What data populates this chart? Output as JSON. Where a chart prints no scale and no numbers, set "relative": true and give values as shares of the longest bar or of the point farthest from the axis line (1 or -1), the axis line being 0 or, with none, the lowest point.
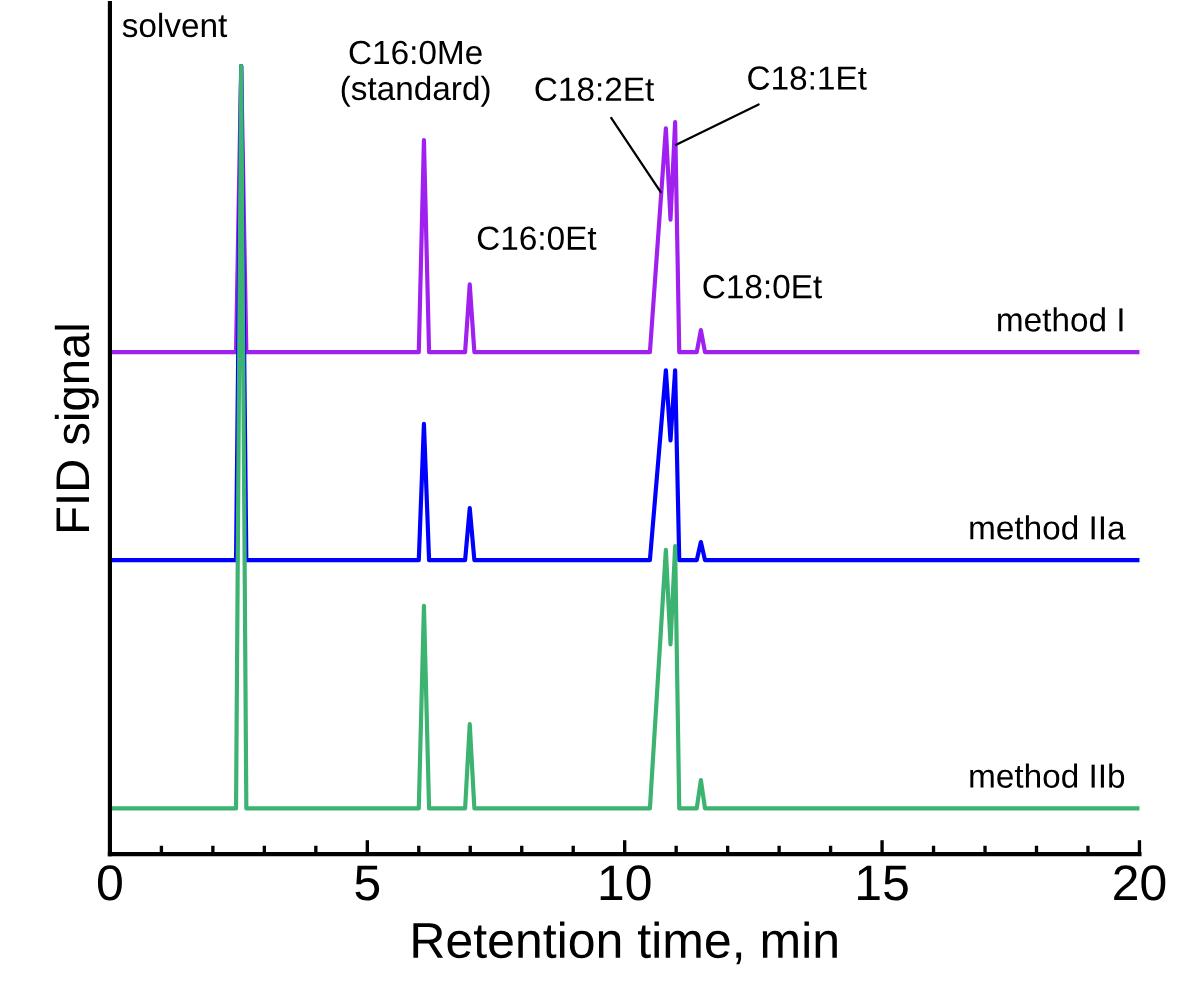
{
  "chart_data": {
    "type": "line",
    "relative": true,
    "xlabel": "Retention time, min",
    "ylabel": "FID signal",
    "x": [
      0,
      2.45,
      2.55,
      2.65,
      6.0,
      6.1,
      6.2,
      6.9,
      6.99,
      7.08,
      10.49,
      10.8,
      10.89,
      10.98,
      11.06,
      11.4,
      11.48,
      11.56,
      20
    ],
    "series": [
      {
        "name": "method I",
        "color": "#a020f0",
        "values": [
          0.637,
          0.637,
          1,
          0.637,
          0.637,
          0.906,
          0.637,
          0.637,
          0.723,
          0.637,
          0.637,
          0.921,
          0.805,
          0.929,
          0.637,
          0.637,
          0.665,
          0.637,
          0.637
        ]
      },
      {
        "name": "method IIa",
        "color": "#0000ff",
        "values": [
          0.373,
          0.373,
          1,
          0.373,
          0.373,
          0.546,
          0.373,
          0.373,
          0.439,
          0.373,
          0.373,
          0.614,
          0.525,
          0.614,
          0.373,
          0.373,
          0.396,
          0.373,
          0.373
        ]
      },
      {
        "name": "method IIb",
        "color": "#3cb371",
        "values": [
          0.058,
          0.058,
          1,
          0.058,
          0.058,
          0.315,
          0.058,
          0.058,
          0.165,
          0.058,
          0.058,
          0.386,
          0.266,
          0.391,
          0.058,
          0.058,
          0.094,
          0.058,
          0.058
        ]
      }
    ],
    "xlim": [
      0,
      20
    ],
    "xticks": [
      0,
      {
        "value": 1,
        "label": null
      },
      {
        "value": 2,
        "label": null
      },
      {
        "value": 3,
        "label": null
      },
      {
        "value": 4,
        "label": null
      },
      5,
      {
        "value": 6,
        "label": null
      },
      {
        "value": 7,
        "label": null
      },
      {
        "value": 8,
        "label": null
      },
      {
        "value": 9,
        "label": null
      },
      10,
      {
        "value": 11,
        "label": null
      },
      {
        "value": 12,
        "label": null
      },
      {
        "value": 13,
        "label": null
      },
      {
        "value": 14,
        "label": null
      },
      15,
      {
        "value": 16,
        "label": null
      },
      {
        "value": 17,
        "label": null
      },
      {
        "value": 18,
        "label": null
      },
      {
        "value": 19,
        "label": null
      },
      20
    ],
    "annotations": [
      {
        "text": "solvent",
        "x": 2.55,
        "y": 1.0
      },
      {
        "text": "C16:0Me\n(standard)",
        "x": 6.1,
        "y": 0.906
      },
      {
        "text": "C16:0Et",
        "x": 6.99,
        "y": 0.723
      },
      {
        "text": "C18:2Et",
        "x": 10.7,
        "y": 0.84
      },
      {
        "text": "C18:1Et",
        "x": 11.0,
        "y": 0.9
      },
      {
        "text": "C18:0Et",
        "x": 11.48,
        "y": 0.665
      }
    ],
    "grid": false,
    "legend": false,
    "marker": "none",
    "line_style": "solid"
  }
}
